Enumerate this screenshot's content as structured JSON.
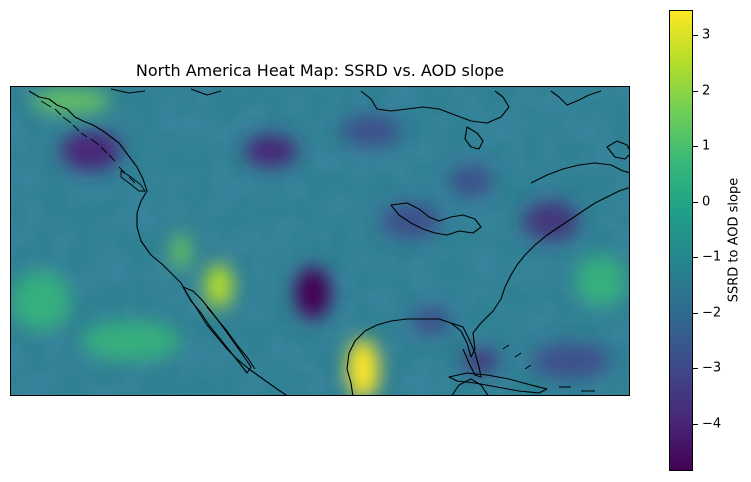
{
  "title": "North America Heat Map: SSRD vs. AOD slope",
  "colorbar": {
    "label": "SSRD  to AOD slope",
    "range": [
      -4.85,
      3.45
    ],
    "ticks": [
      3,
      2,
      1,
      0,
      -1,
      -2,
      -3,
      -4
    ],
    "tick_labels": [
      "3",
      "2",
      "1",
      "0",
      "−1",
      "−2",
      "−3",
      "−4"
    ],
    "colormap": "viridis"
  },
  "chart_data": {
    "type": "heatmap",
    "title": "North America Heat Map: SSRD vs. AOD slope",
    "colorbar_label": "SSRD  to AOD slope",
    "value_range": [
      -4.85,
      3.45
    ],
    "lon_range": [
      -130,
      -60
    ],
    "lat_range": [
      15,
      50
    ],
    "grid_lines": false,
    "features": [
      "coastlines"
    ],
    "notable_regions": [
      {
        "region": "Gulf of Mexico coast (south Texas / northeast Mexico)",
        "approx_value": 3.3
      },
      {
        "region": "Baja California / Sonora",
        "approx_value": 2.2
      },
      {
        "region": "Southern Great Plains (Oklahoma / Texas panhandle)",
        "approx_value": -4.5
      },
      {
        "region": "Pacific Northwest",
        "approx_value": -3.5
      },
      {
        "region": "Southern Canada Plains",
        "approx_value": -3.5
      }
    ]
  }
}
